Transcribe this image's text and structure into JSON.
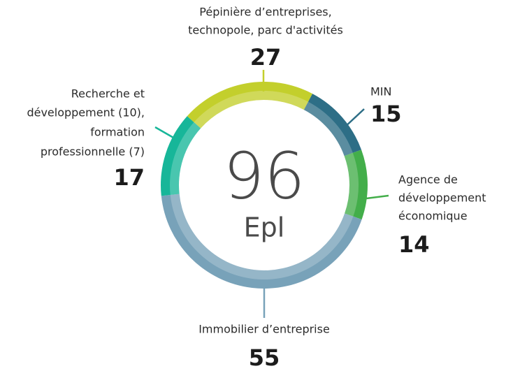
{
  "chart_data": {
    "type": "donut",
    "center_value": 96,
    "center_label": "Epl",
    "categories": [
      [
        "Pépinière d’entreprises,",
        "technopole, parc d'activités"
      ],
      [
        "MIN"
      ],
      [
        "Agence de",
        "développement",
        "économique"
      ],
      [
        "Immobilier d’entreprise"
      ],
      [
        "Recherche et",
        "développement (10),",
        "formation",
        "professionnelle (7)"
      ]
    ],
    "values": [
      27,
      15,
      14,
      55,
      17
    ],
    "colors": [
      "#c3cf2c",
      "#2d6e86",
      "#43ae4a",
      "#78a2b9",
      "#17b699"
    ]
  }
}
